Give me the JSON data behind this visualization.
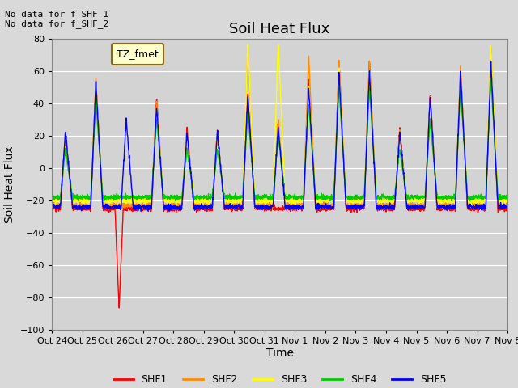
{
  "title": "Soil Heat Flux",
  "ylabel": "Soil Heat Flux",
  "xlabel": "Time",
  "annotations": [
    "No data for f_SHF_1",
    "No data for f_SHF_2"
  ],
  "legend_label": "TZ_fmet",
  "series_labels": [
    "SHF1",
    "SHF2",
    "SHF3",
    "SHF4",
    "SHF5"
  ],
  "series_colors": [
    "#ff0000",
    "#ff8c00",
    "#ffff00",
    "#00cc00",
    "#0000ff"
  ],
  "ylim": [
    -100,
    80
  ],
  "yticks": [
    -100,
    -80,
    -60,
    -40,
    -20,
    0,
    20,
    40,
    60,
    80
  ],
  "xtick_labels": [
    "Oct 24",
    "Oct 25",
    "Oct 26",
    "Oct 27",
    "Oct 28",
    "Oct 29",
    "Oct 30",
    "Oct 31",
    "Nov 1",
    "Nov 2",
    "Nov 3",
    "Nov 4",
    "Nov 5",
    "Nov 6",
    "Nov 7",
    "Nov 8"
  ],
  "bg_color": "#d9d9d9",
  "plot_bg_color": "#d3d3d3",
  "grid_color": "#ffffff",
  "title_fontsize": 13,
  "axis_label_fontsize": 10,
  "tick_fontsize": 8,
  "legend_fontsize": 9,
  "n_days": 15,
  "pts_per_day": 144
}
